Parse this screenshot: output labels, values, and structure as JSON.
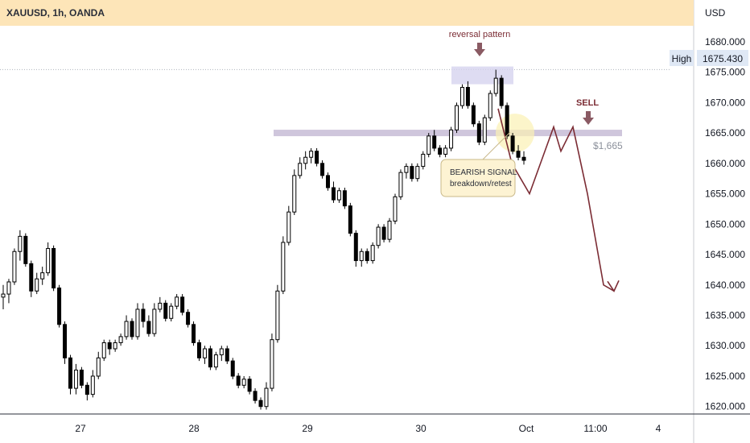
{
  "header": {
    "symbol_title": "XAUUSD, 1h, OANDA",
    "currency": "USD"
  },
  "chart_data": {
    "type": "candlestick",
    "title": "XAUUSD, 1h, OANDA",
    "y_axis": {
      "unit": "USD",
      "ylim": [
        1619.3,
        1682.1
      ],
      "ticks": [
        "1680.000",
        "1675.000",
        "1670.000",
        "1665.000",
        "1660.000",
        "1655.000",
        "1650.000",
        "1645.000",
        "1640.000",
        "1635.000",
        "1630.000",
        "1625.000",
        "1620.000"
      ]
    },
    "x_axis": {
      "labels": [
        "27",
        "28",
        "29",
        "30",
        "Oct",
        "11:00",
        "4"
      ]
    },
    "high_marker": {
      "label": "High",
      "value": "1675.430"
    },
    "level": {
      "price": 1665,
      "label": "$1,665"
    },
    "annotations": {
      "reversal": "reversal pattern",
      "sell": "SELL",
      "signal_line1": "BEARISH SIGNAL",
      "signal_line2": "breakdown/retest"
    },
    "projected_path": [
      1669,
      1660,
      1655,
      1666,
      1662,
      1666,
      1655,
      1640,
      1639
    ],
    "candles": [
      [
        1638,
        1640,
        1636,
        1638.5
      ],
      [
        1638.5,
        1641,
        1637,
        1640.5
      ],
      [
        1640.5,
        1646,
        1640,
        1645.5
      ],
      [
        1645.5,
        1649,
        1644,
        1648
      ],
      [
        1648,
        1648.5,
        1643,
        1643.5
      ],
      [
        1643.5,
        1644,
        1638,
        1639
      ],
      [
        1639,
        1642,
        1638.5,
        1641
      ],
      [
        1641,
        1643,
        1640,
        1642
      ],
      [
        1642,
        1647,
        1641.5,
        1646
      ],
      [
        1646,
        1646.5,
        1639,
        1639.5
      ],
      [
        1639.5,
        1640,
        1633,
        1633.5
      ],
      [
        1633.5,
        1634,
        1627,
        1628
      ],
      [
        1628,
        1628.5,
        1622,
        1623
      ],
      [
        1623,
        1627,
        1622,
        1626
      ],
      [
        1626,
        1626.5,
        1623,
        1623.5
      ],
      [
        1623.5,
        1624,
        1621,
        1622
      ],
      [
        1622,
        1626,
        1621.5,
        1625
      ],
      [
        1625,
        1629,
        1624.5,
        1628
      ],
      [
        1628,
        1631,
        1627.5,
        1630.5
      ],
      [
        1630.5,
        1631,
        1628.5,
        1629.5
      ],
      [
        1629.5,
        1631,
        1629,
        1630.5
      ],
      [
        1630.5,
        1632,
        1630,
        1631.5
      ],
      [
        1631.5,
        1635,
        1631,
        1634
      ],
      [
        1634,
        1634.5,
        1631,
        1631.5
      ],
      [
        1631.5,
        1637,
        1631,
        1636
      ],
      [
        1636,
        1637,
        1633,
        1634
      ],
      [
        1634,
        1635,
        1631.5,
        1632
      ],
      [
        1632,
        1637,
        1631.5,
        1636
      ],
      [
        1636,
        1638,
        1635.5,
        1637
      ],
      [
        1637,
        1637.5,
        1634,
        1634.5
      ],
      [
        1634.5,
        1637,
        1634,
        1636.5
      ],
      [
        1636.5,
        1638.5,
        1636,
        1638
      ],
      [
        1638,
        1638.5,
        1635,
        1635.5
      ],
      [
        1635.5,
        1636,
        1633,
        1633.5
      ],
      [
        1633.5,
        1634,
        1630,
        1630.5
      ],
      [
        1630.5,
        1631,
        1627.5,
        1628
      ],
      [
        1628,
        1630,
        1627,
        1629.5
      ],
      [
        1629.5,
        1630,
        1626,
        1626.5
      ],
      [
        1626.5,
        1629,
        1626,
        1628.5
      ],
      [
        1628.5,
        1630,
        1627.5,
        1629.5
      ],
      [
        1629.5,
        1630,
        1627,
        1627.5
      ],
      [
        1627.5,
        1628,
        1624.5,
        1625
      ],
      [
        1625,
        1625.5,
        1623,
        1623.5
      ],
      [
        1623.5,
        1625,
        1623,
        1624.5
      ],
      [
        1624.5,
        1625,
        1622,
        1622.5
      ],
      [
        1622.5,
        1623,
        1620.5,
        1621
      ],
      [
        1621,
        1621.5,
        1619.5,
        1620
      ],
      [
        1620,
        1624,
        1619.5,
        1623
      ],
      [
        1623,
        1632,
        1622.5,
        1631
      ],
      [
        1631,
        1640,
        1630.5,
        1639
      ],
      [
        1639,
        1648,
        1638.5,
        1647
      ],
      [
        1647,
        1653,
        1646.5,
        1652
      ],
      [
        1652,
        1659,
        1651.5,
        1658
      ],
      [
        1658,
        1661,
        1657.5,
        1660
      ],
      [
        1660,
        1662,
        1659,
        1661
      ],
      [
        1661,
        1662.5,
        1660,
        1662
      ],
      [
        1662,
        1662.5,
        1659.5,
        1660
      ],
      [
        1660,
        1660.5,
        1657.5,
        1658
      ],
      [
        1658,
        1658.5,
        1655.5,
        1656
      ],
      [
        1656,
        1657,
        1653.5,
        1654
      ],
      [
        1654,
        1656,
        1653.5,
        1655.5
      ],
      [
        1655.5,
        1656,
        1652.5,
        1653
      ],
      [
        1653,
        1653.5,
        1648,
        1648.5
      ],
      [
        1648.5,
        1649,
        1643,
        1644
      ],
      [
        1644,
        1646,
        1643,
        1645.5
      ],
      [
        1645.5,
        1646,
        1643.5,
        1644
      ],
      [
        1644,
        1647,
        1643.5,
        1646.5
      ],
      [
        1646.5,
        1650,
        1646,
        1649.5
      ],
      [
        1649.5,
        1650,
        1647,
        1647.5
      ],
      [
        1647.5,
        1651,
        1647,
        1650.5
      ],
      [
        1650.5,
        1655,
        1650,
        1654.5
      ],
      [
        1654.5,
        1659,
        1654,
        1658.5
      ],
      [
        1658.5,
        1660,
        1657.5,
        1659.5
      ],
      [
        1659.5,
        1660,
        1657,
        1657.5
      ],
      [
        1657.5,
        1660,
        1657,
        1659.5
      ],
      [
        1659.5,
        1662,
        1659,
        1661.5
      ],
      [
        1661.5,
        1665,
        1661,
        1664.5
      ],
      [
        1664.5,
        1665.5,
        1662,
        1662.5
      ],
      [
        1662.5,
        1663,
        1661,
        1661.5
      ],
      [
        1661.5,
        1663,
        1661,
        1662.5
      ],
      [
        1662.5,
        1666,
        1662,
        1665.5
      ],
      [
        1665.5,
        1670,
        1665,
        1669.5
      ],
      [
        1669.5,
        1673,
        1669,
        1672.5
      ],
      [
        1672.5,
        1673.5,
        1669,
        1669.5
      ],
      [
        1669.5,
        1670,
        1666,
        1666.5
      ],
      [
        1666.5,
        1667,
        1663,
        1663.5
      ],
      [
        1663.5,
        1668,
        1663,
        1667.5
      ],
      [
        1667.5,
        1672,
        1667,
        1671.5
      ],
      [
        1671.5,
        1675.4,
        1671,
        1674
      ],
      [
        1674,
        1674.5,
        1669,
        1669.5
      ],
      [
        1669.5,
        1670,
        1664,
        1664.5
      ],
      [
        1664.5,
        1665,
        1661.5,
        1662
      ],
      [
        1662,
        1663,
        1660.5,
        1661
      ],
      [
        1661,
        1662,
        1659.8,
        1660.5
      ]
    ]
  },
  "colors": {
    "bull_candle": "#ffffff",
    "bear_candle": "#000000",
    "projection": "#7b2c34",
    "level_band": "#c7bcd6",
    "header_bg": "#fde5b8",
    "axis_text": "#131722",
    "annotation_text": "#7b2c34"
  }
}
